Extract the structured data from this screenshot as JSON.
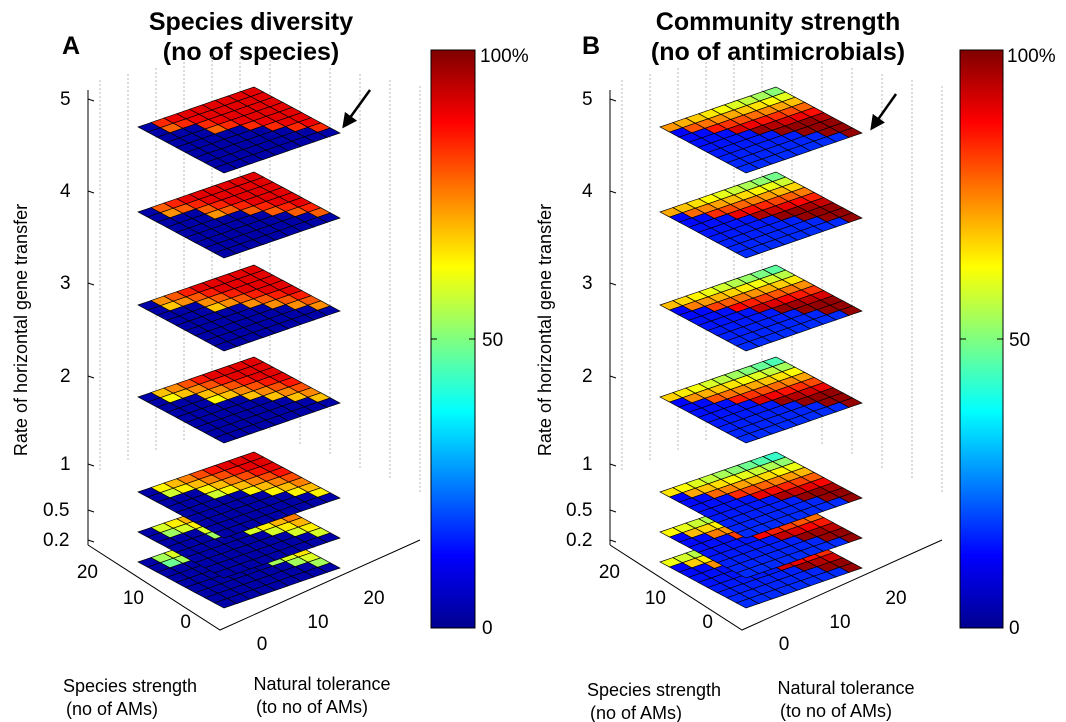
{
  "chart_data": [
    {
      "type": "heatmap",
      "panel_letter": "A",
      "title_line1": "Species diversity",
      "title_line2": "(no of species)",
      "zlabel": "Rate of horizontal gene transfer",
      "z_levels": [
        0.2,
        0.5,
        1,
        2,
        3,
        4,
        5
      ],
      "z_tick_labels": [
        "0.2",
        "0.5",
        "1",
        "2",
        "3",
        "4",
        "5"
      ],
      "x_axis_label_line1": "Species strength",
      "x_axis_label_line2": "(no of AMs)",
      "x_ticks": [
        "0",
        "10",
        "20"
      ],
      "y_axis_label_line1": "Natural tolerance",
      "y_axis_label_line2": "(to no of AMs)",
      "y_ticks": [
        "0",
        "10",
        "20"
      ],
      "colorbar": {
        "min_label": "0",
        "mid_label": "50",
        "max_label": "100%",
        "range": [
          0,
          100
        ]
      },
      "grid_size": 9,
      "annotation": "arrow pointing at top layer (rate 5)",
      "layer_values_description": "near 0% where species strength exceeds natural tolerance; rising to ~70-85% toward the high-tolerance corner"
    },
    {
      "type": "heatmap",
      "panel_letter": "B",
      "title_line1": "Community strength",
      "title_line2": "(no of antimicrobials)",
      "zlabel": "Rate of horizontal gene transfer",
      "z_levels": [
        0.2,
        0.5,
        1,
        2,
        3,
        4,
        5
      ],
      "z_tick_labels": [
        "0.2",
        "0.5",
        "1",
        "2",
        "3",
        "4",
        "5"
      ],
      "x_axis_label_line1": "Species strength",
      "x_axis_label_line2": "(no of AMs)",
      "x_ticks": [
        "0",
        "10",
        "20"
      ],
      "y_axis_label_line1": "Natural tolerance",
      "y_axis_label_line2": "(to no of AMs)",
      "y_ticks": [
        "0",
        "10",
        "20"
      ],
      "colorbar": {
        "min_label": "0",
        "mid_label": "50",
        "max_label": "100%",
        "range": [
          0,
          100
        ]
      },
      "grid_size": 9,
      "annotation": "arrow pointing at top layer (rate 5)",
      "layer_values_description": "near 0-20% where species strength exceeds natural tolerance; up to ~90-100% at the far corner, falling to ~40% along the high-tolerance edge"
    }
  ]
}
